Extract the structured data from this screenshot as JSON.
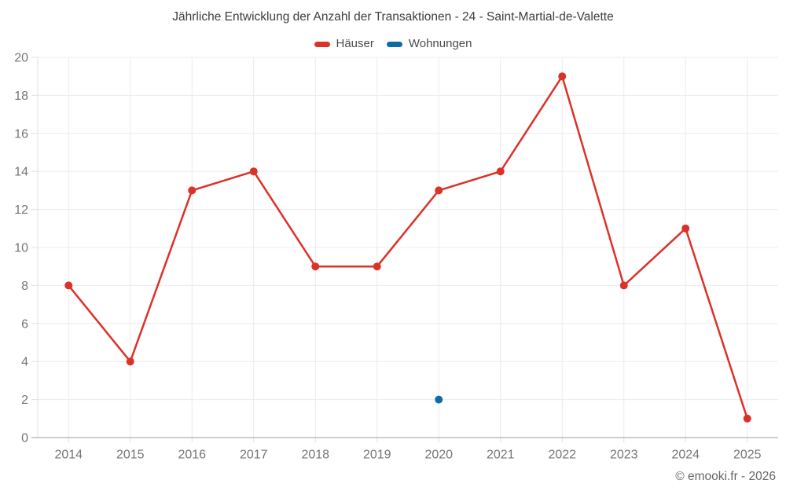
{
  "chart_data": {
    "type": "line",
    "title": "Jährliche Entwicklung der Anzahl der Transaktionen - 24 - Saint-Martial-de-Valette",
    "categories": [
      "2014",
      "2015",
      "2016",
      "2017",
      "2018",
      "2019",
      "2020",
      "2021",
      "2022",
      "2023",
      "2024",
      "2025"
    ],
    "series": [
      {
        "name": "Häuser",
        "color": "#dc3128",
        "values": [
          8,
          4,
          13,
          14,
          9,
          9,
          13,
          14,
          19,
          8,
          11,
          1
        ]
      },
      {
        "name": "Wohnungen",
        "color": "#0f6ba6",
        "values": [
          null,
          null,
          null,
          null,
          null,
          null,
          2,
          null,
          null,
          null,
          null,
          null
        ]
      }
    ],
    "ylim": [
      0,
      20
    ],
    "yticks": [
      0,
      2,
      4,
      6,
      8,
      10,
      12,
      14,
      16,
      18,
      20
    ],
    "xlabel": "",
    "ylabel": "",
    "grid": true,
    "legend_position": "top"
  },
  "footer": {
    "text": "© emooki.fr - 2026"
  }
}
